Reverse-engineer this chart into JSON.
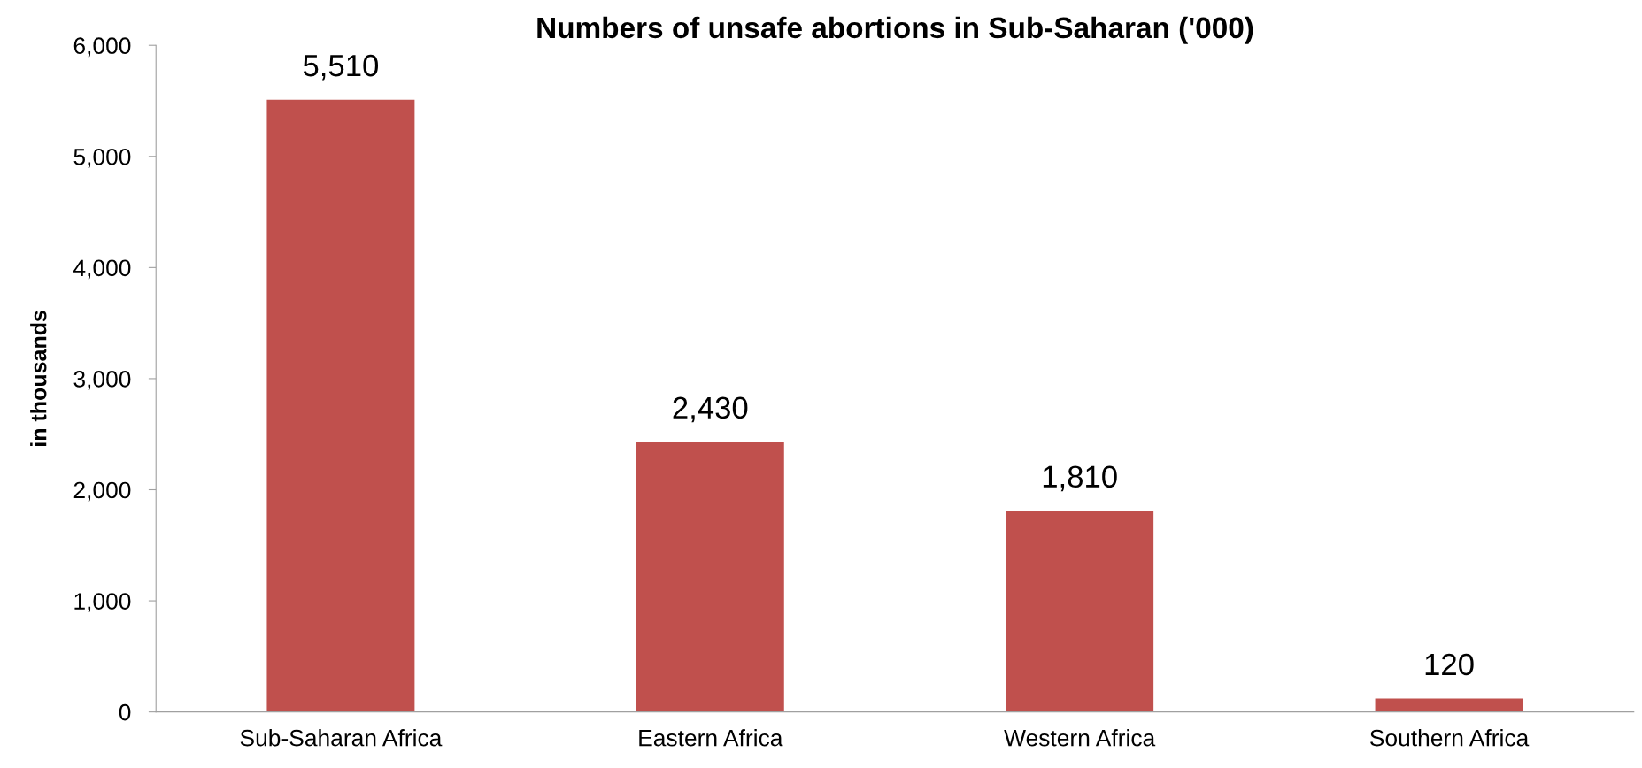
{
  "chart_data": {
    "type": "bar",
    "title": "Numbers of unsafe abortions in Sub-Saharan ('000)",
    "ylabel": "in thousands",
    "categories": [
      "Sub-Saharan Africa",
      "Eastern Africa",
      "Western Africa",
      "Southern Africa"
    ],
    "values": [
      5510,
      2430,
      1810,
      120
    ],
    "color": "#c0504d",
    "value_labels": [
      "5,510",
      "2,430",
      "1,810",
      "120"
    ],
    "ylim": [
      0,
      6000
    ],
    "yticks": [
      {
        "value": 0,
        "label": "0"
      },
      {
        "value": 1000,
        "label": "1,000"
      },
      {
        "value": 2000,
        "label": "2,000"
      },
      {
        "value": 3000,
        "label": "3,000"
      },
      {
        "value": 4000,
        "label": "4,000"
      },
      {
        "value": 5000,
        "label": "5,000"
      },
      {
        "value": 6000,
        "label": "6,000"
      }
    ],
    "grid": false,
    "legend": false
  }
}
